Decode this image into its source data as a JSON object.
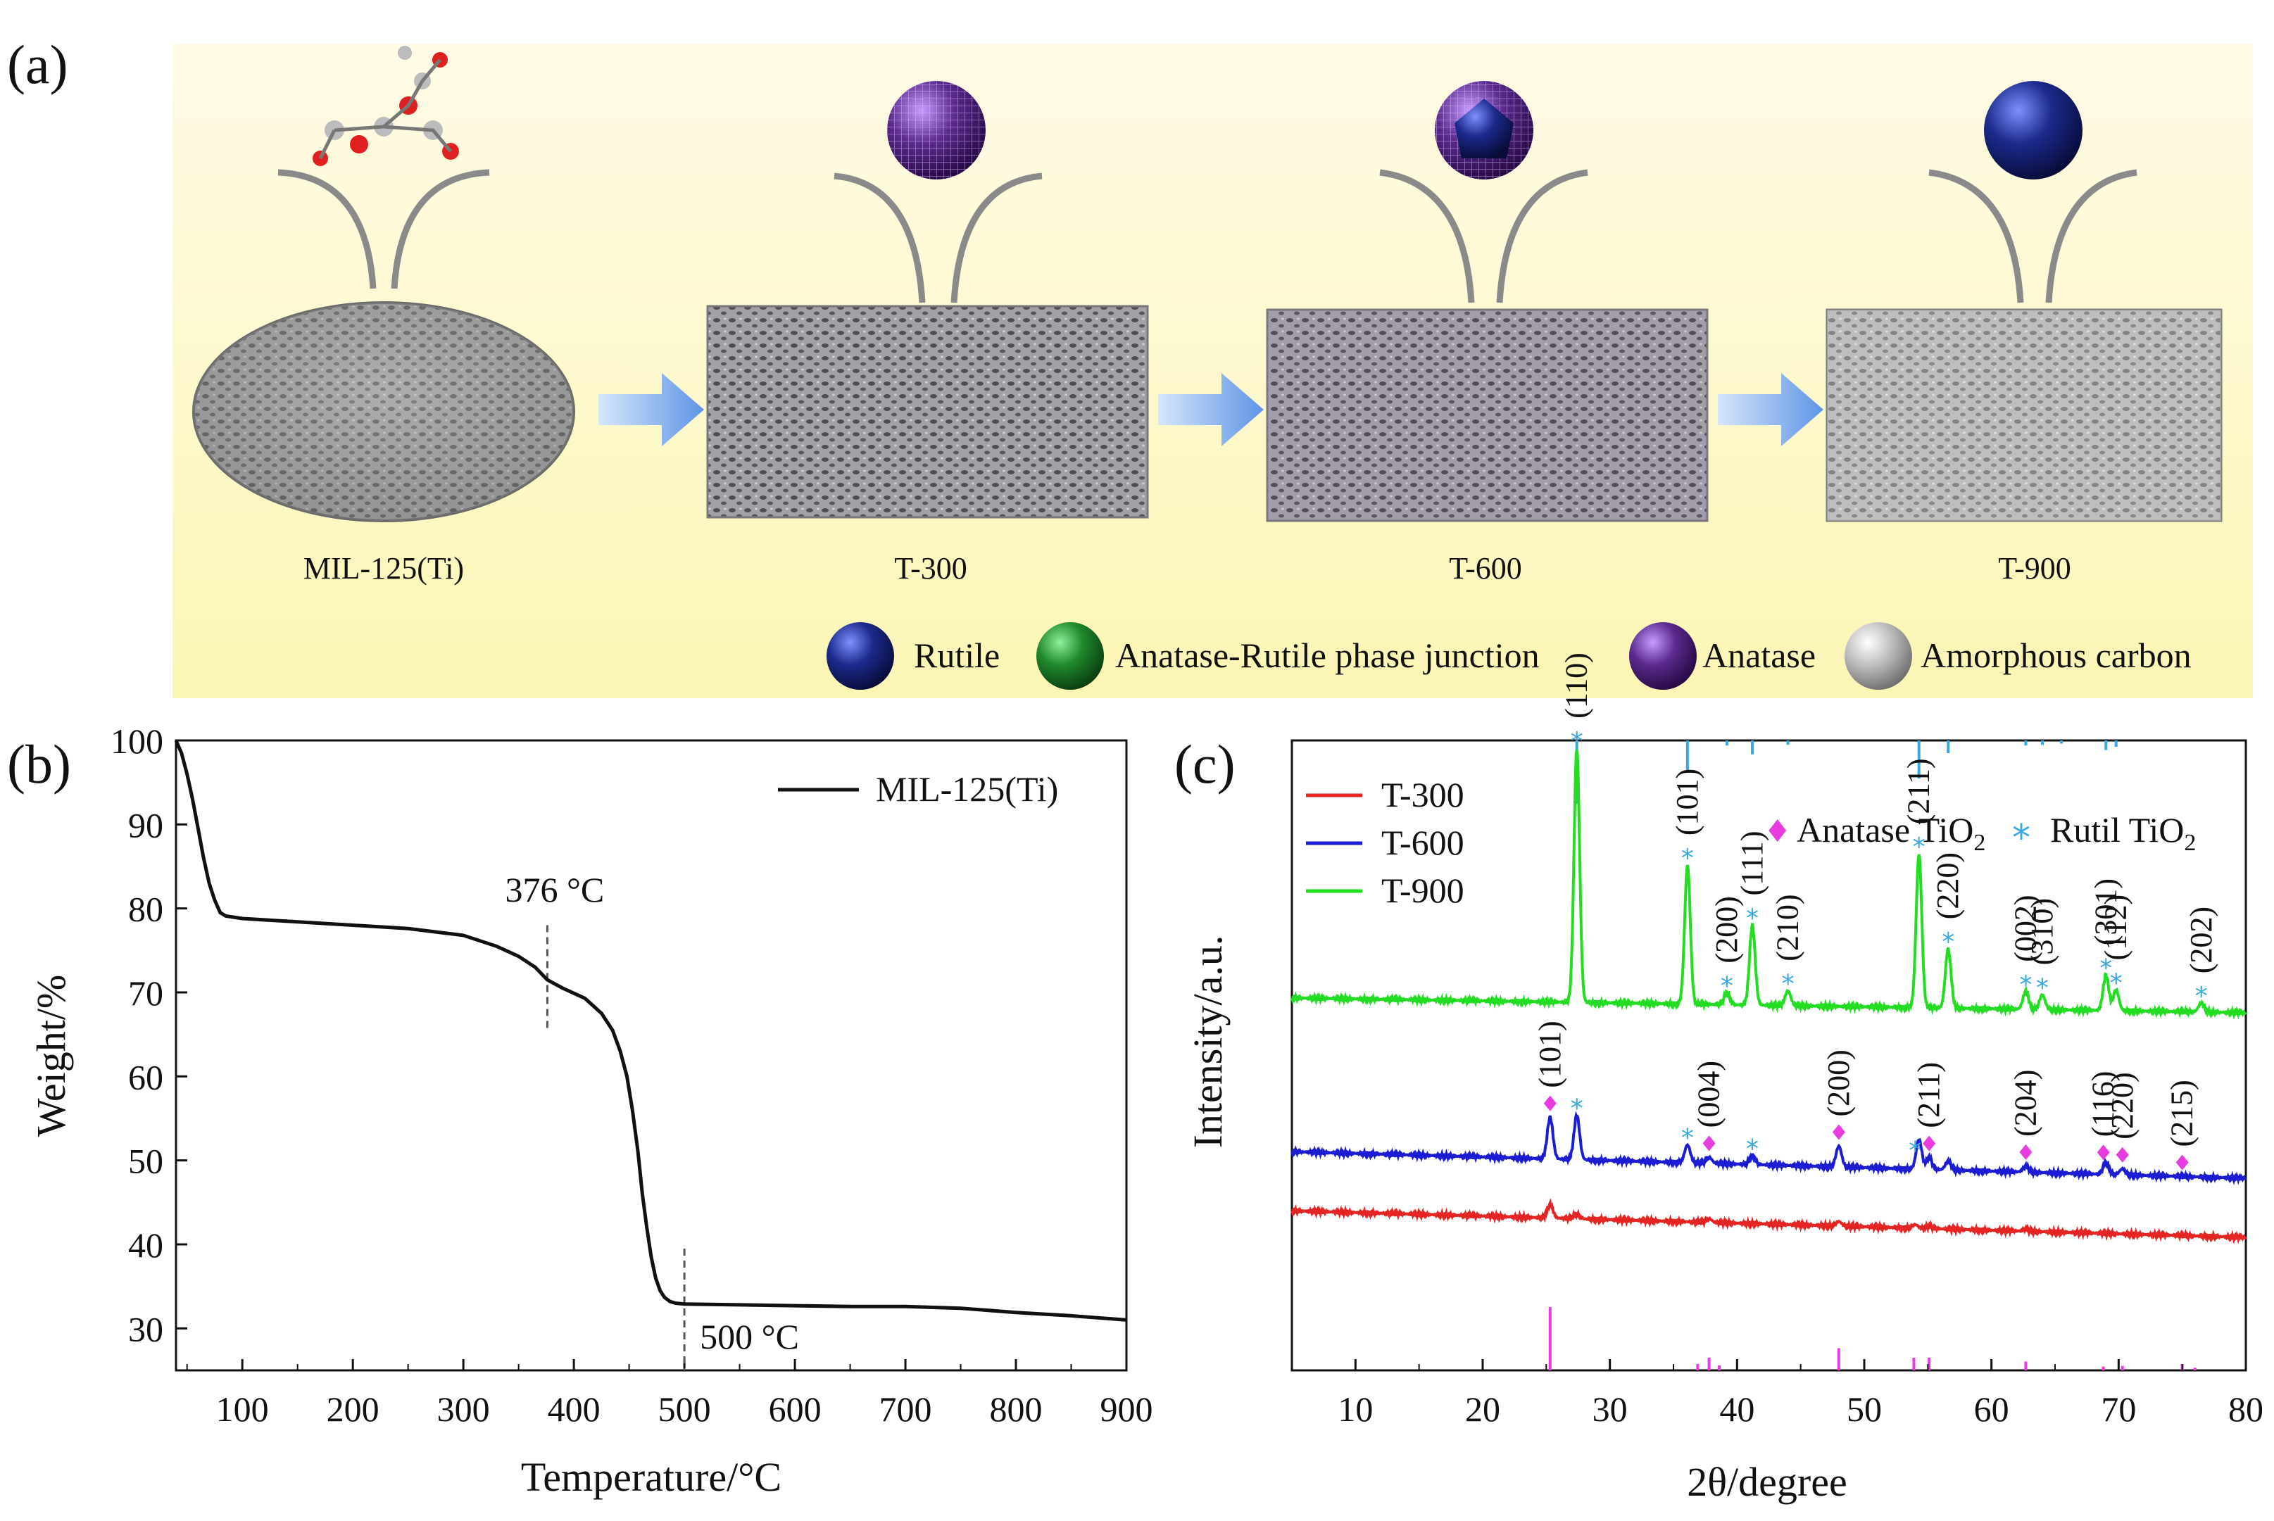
{
  "panel_a": {
    "label": "(a)",
    "stages": [
      "MIL-125(Ti)",
      "T-300",
      "T-600",
      "T-900"
    ],
    "legend": [
      {
        "name": "Rutile",
        "color": "#1c2a8c"
      },
      {
        "name": "Anatase-Rutile phase junction",
        "color": "#1f8a2c"
      },
      {
        "name": "Anatase",
        "color": "#5b2a8e"
      },
      {
        "name": "Amorphous carbon",
        "color": "#b9b9b9"
      }
    ],
    "arrow_icon": "right-arrow-icon"
  },
  "chart_data": [
    {
      "id": "b",
      "panel_label": "(b)",
      "type": "line",
      "xlabel": "Temperature/°C",
      "ylabel": "Weight/%",
      "xlim": [
        40,
        900
      ],
      "ylim": [
        25,
        100
      ],
      "xticks": [
        100,
        200,
        300,
        400,
        500,
        600,
        700,
        800,
        900
      ],
      "yticks": [
        30,
        40,
        50,
        60,
        70,
        80,
        90,
        100
      ],
      "legend_position": "top-right",
      "series": [
        {
          "name": "MIL-125(Ti)",
          "color": "#111111",
          "x": [
            40,
            45,
            50,
            55,
            60,
            65,
            70,
            75,
            80,
            85,
            90,
            100,
            150,
            200,
            250,
            300,
            330,
            350,
            365,
            376,
            390,
            410,
            425,
            435,
            442,
            448,
            453,
            458,
            462,
            466,
            470,
            474,
            478,
            482,
            487,
            492,
            500,
            550,
            600,
            650,
            700,
            750,
            800,
            850,
            900
          ],
          "y": [
            100,
            98.5,
            96,
            93,
            89.5,
            86,
            83,
            81,
            79.5,
            79.1,
            79,
            78.8,
            78.4,
            78.0,
            77.6,
            76.8,
            75.5,
            74.3,
            73,
            71.5,
            70.5,
            69.3,
            67.5,
            65.5,
            63,
            60,
            56,
            51,
            46,
            42,
            38.5,
            36,
            34.5,
            33.7,
            33.2,
            33.0,
            32.9,
            32.8,
            32.7,
            32.6,
            32.6,
            32.4,
            31.9,
            31.5,
            31.0
          ]
        }
      ],
      "annotations": [
        {
          "text": "376 °C",
          "x": 376
        },
        {
          "text": "500 °C",
          "x": 500
        }
      ]
    },
    {
      "id": "c",
      "panel_label": "(c)",
      "type": "line",
      "xlabel": "2θ/degree",
      "ylabel": "Intensity/a.u.",
      "xlim": [
        5,
        80
      ],
      "xticks": [
        10,
        20,
        30,
        40,
        50,
        60,
        70,
        80
      ],
      "yticks": [],
      "legend_position": "top-left",
      "series": [
        {
          "name": "T-300",
          "color": "#e52424",
          "baseline_start": 11,
          "baseline_end": 2,
          "level": 18,
          "peaks": [
            [
              25.3,
              4.5
            ],
            [
              27.4,
              1.5
            ],
            [
              37.8,
              1.2
            ],
            [
              48.0,
              1.5
            ],
            [
              54.0,
              1.2
            ],
            [
              55.1,
              0.8
            ],
            [
              62.7,
              0.7
            ]
          ]
        },
        {
          "name": "T-600",
          "color": "#1c1cd2",
          "baseline_start": 9,
          "baseline_end": 0,
          "level": 40,
          "peaks": [
            [
              25.3,
              14
            ],
            [
              27.4,
              15
            ],
            [
              36.1,
              6
            ],
            [
              37.8,
              2
            ],
            [
              41.2,
              3
            ],
            [
              48.0,
              7
            ],
            [
              54.3,
              10
            ],
            [
              55.1,
              4
            ],
            [
              56.6,
              3
            ],
            [
              62.7,
              2
            ],
            [
              69.0,
              4
            ],
            [
              70.3,
              2
            ]
          ]
        },
        {
          "name": "T-900",
          "color": "#22dd22",
          "baseline_start": 5,
          "baseline_end": 0,
          "level": 96,
          "peaks": [
            [
              27.4,
              86
            ],
            [
              36.1,
              47
            ],
            [
              39.2,
              4
            ],
            [
              41.2,
              27
            ],
            [
              44.0,
              5
            ],
            [
              54.3,
              52
            ],
            [
              56.6,
              20
            ],
            [
              62.7,
              6
            ],
            [
              64.0,
              5
            ],
            [
              69.0,
              12
            ],
            [
              69.8,
              7
            ],
            [
              76.5,
              3
            ]
          ]
        }
      ],
      "peak_labels": [
        {
          "text": "(110)",
          "x": 27.4,
          "series": "T-900"
        },
        {
          "text": "(101)",
          "x": 36.1,
          "series": "T-900"
        },
        {
          "text": "(200)",
          "x": 39.2,
          "series": "T-900"
        },
        {
          "text": "(111)",
          "x": 41.2,
          "series": "T-900"
        },
        {
          "text": "(210)",
          "x": 44.0,
          "series": "T-900"
        },
        {
          "text": "(211)",
          "x": 54.3,
          "series": "T-900"
        },
        {
          "text": "(220)",
          "x": 56.6,
          "series": "T-900"
        },
        {
          "text": "(002)",
          "x": 62.7,
          "series": "T-900"
        },
        {
          "text": "(310)",
          "x": 64.0,
          "series": "T-900"
        },
        {
          "text": "(301)",
          "x": 69.0,
          "series": "T-900"
        },
        {
          "text": "(112)",
          "x": 69.8,
          "series": "T-900"
        },
        {
          "text": "(202)",
          "x": 76.5,
          "series": "T-900"
        },
        {
          "text": "(101)",
          "x": 25.3,
          "series": "T-600"
        },
        {
          "text": "(004)",
          "x": 37.8,
          "series": "T-600"
        },
        {
          "text": "(200)",
          "x": 48.0,
          "series": "T-600"
        },
        {
          "text": "(211)",
          "x": 55.1,
          "series": "T-600"
        },
        {
          "text": "(204)",
          "x": 62.7,
          "series": "T-600"
        },
        {
          "text": "(116)",
          "x": 68.8,
          "series": "T-600"
        },
        {
          "text": "(220)",
          "x": 70.3,
          "series": "T-600"
        },
        {
          "text": "(215)",
          "x": 75.0,
          "series": "T-600"
        }
      ],
      "anatase_markers": [
        [
          25.3,
          "T-600"
        ],
        [
          37.8,
          "T-600"
        ],
        [
          48.0,
          "T-600"
        ],
        [
          55.1,
          "T-600"
        ],
        [
          62.7,
          "T-600"
        ],
        [
          68.8,
          "T-600"
        ],
        [
          70.3,
          "T-600"
        ],
        [
          75.0,
          "T-600"
        ]
      ],
      "rutile_markers": [
        [
          27.4,
          "T-900"
        ],
        [
          36.1,
          "T-900"
        ],
        [
          39.2,
          "T-900"
        ],
        [
          41.2,
          "T-900"
        ],
        [
          44.0,
          "T-900"
        ],
        [
          54.3,
          "T-900"
        ],
        [
          56.6,
          "T-900"
        ],
        [
          62.7,
          "T-900"
        ],
        [
          64.0,
          "T-900"
        ],
        [
          69.0,
          "T-900"
        ],
        [
          69.8,
          "T-900"
        ],
        [
          76.5,
          "T-900"
        ],
        [
          27.4,
          "T-600"
        ],
        [
          36.1,
          "T-600"
        ],
        [
          41.2,
          "T-600"
        ],
        [
          54.0,
          "T-600"
        ]
      ],
      "reference_rutile": {
        "color": "#39a8e0",
        "x": [
          27.4,
          36.1,
          39.2,
          41.2,
          44.0,
          54.3,
          56.6,
          62.7,
          64.0,
          65.5,
          69.0,
          69.8
        ],
        "rel": [
          1.0,
          0.5,
          0.08,
          0.22,
          0.07,
          0.6,
          0.2,
          0.08,
          0.07,
          0.05,
          0.15,
          0.1
        ]
      },
      "reference_anatase": {
        "color": "#e83be0",
        "x": [
          25.3,
          36.9,
          37.8,
          38.6,
          48.0,
          53.9,
          55.1,
          62.7,
          68.8,
          70.3,
          75.0,
          76.0
        ],
        "rel": [
          1.0,
          0.1,
          0.2,
          0.08,
          0.35,
          0.2,
          0.2,
          0.14,
          0.06,
          0.07,
          0.1,
          0.04
        ]
      },
      "marker_legend": [
        {
          "symbol": "♦",
          "color": "#e83be0",
          "text": "Anatase TiO"
        },
        {
          "symbol": "*",
          "color": "#39a8e0",
          "text": "Rutil TiO"
        }
      ],
      "subscript": "2"
    }
  ]
}
